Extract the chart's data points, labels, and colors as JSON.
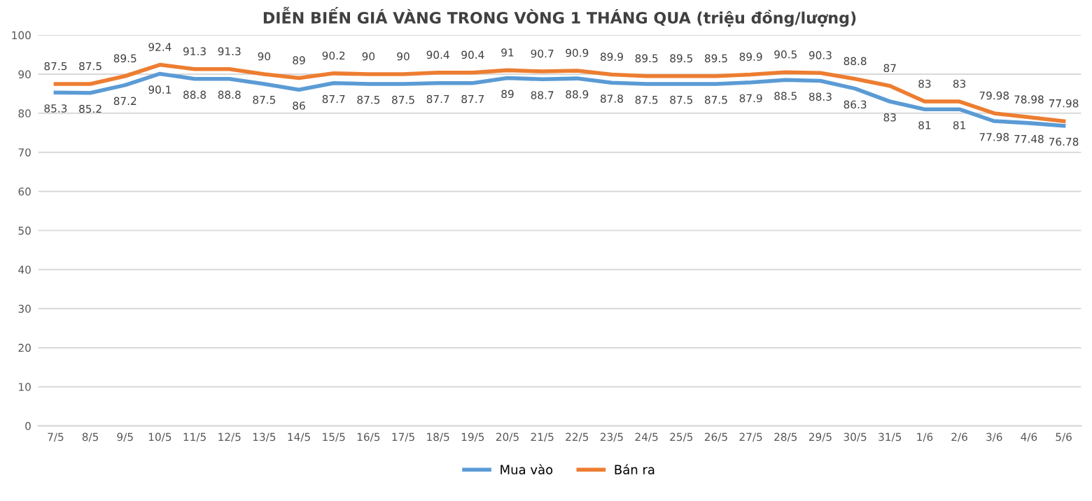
{
  "chart_data": {
    "type": "line",
    "title": "DIỄN BIẾN GIÁ VÀNG TRONG VÒNG 1 THÁNG QUA (triệu đồng/lượng)",
    "categories": [
      "7/5",
      "8/5",
      "9/5",
      "10/5",
      "11/5",
      "12/5",
      "13/5",
      "14/5",
      "15/5",
      "16/5",
      "17/5",
      "18/5",
      "19/5",
      "20/5",
      "21/5",
      "22/5",
      "23/5",
      "24/5",
      "25/5",
      "26/5",
      "27/5",
      "28/5",
      "29/5",
      "30/5",
      "31/5",
      "1/6",
      "2/6",
      "3/6",
      "4/6",
      "5/6"
    ],
    "series": [
      {
        "name": "Mua vào",
        "color": "#5b9bd5",
        "values": [
          85.3,
          85.2,
          87.2,
          90.1,
          88.8,
          88.8,
          87.5,
          86,
          87.7,
          87.5,
          87.5,
          87.7,
          87.7,
          89,
          88.7,
          88.9,
          87.8,
          87.5,
          87.5,
          87.5,
          87.9,
          88.5,
          88.3,
          86.3,
          83,
          81,
          81,
          77.98,
          77.48,
          76.78
        ]
      },
      {
        "name": "Bán ra",
        "color": "#ed7d31",
        "values": [
          87.5,
          87.5,
          89.5,
          92.4,
          91.3,
          91.3,
          90,
          89,
          90.2,
          90,
          90,
          90.4,
          90.4,
          91,
          90.7,
          90.9,
          89.9,
          89.5,
          89.5,
          89.5,
          89.9,
          90.5,
          90.3,
          88.8,
          87,
          83,
          83,
          79.98,
          78.98,
          77.98
        ]
      }
    ],
    "ylim": [
      0,
      100
    ],
    "yticks": [
      0,
      10,
      20,
      30,
      40,
      50,
      60,
      70,
      80,
      90,
      100
    ],
    "grid": "y",
    "legend": "bottom",
    "data_labels": true,
    "marker": "none",
    "line_style": "solid"
  }
}
